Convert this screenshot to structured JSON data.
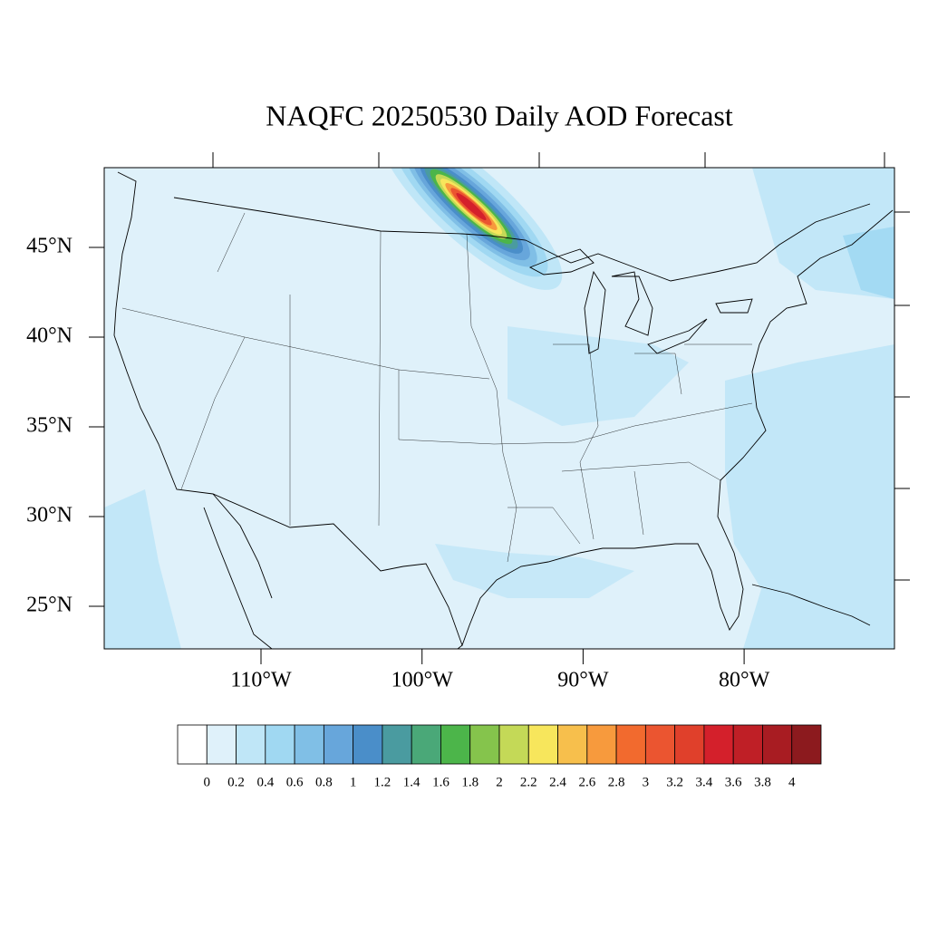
{
  "title": "NAQFC 20250530 Daily AOD Forecast",
  "lat_labels": [
    {
      "value": 45,
      "label": "45°N"
    },
    {
      "value": 40,
      "label": "40°N"
    },
    {
      "value": 35,
      "label": "35°N"
    },
    {
      "value": 30,
      "label": "30°N"
    },
    {
      "value": 25,
      "label": "25°N"
    }
  ],
  "lon_labels": [
    {
      "value": -110,
      "label": "110°W"
    },
    {
      "value": -100,
      "label": "100°W"
    },
    {
      "value": -90,
      "label": "90°W"
    },
    {
      "value": -80,
      "label": "80°W"
    }
  ],
  "colorbar": {
    "levels": [
      0,
      0.2,
      0.4,
      0.6,
      0.8,
      1,
      1.2,
      1.4,
      1.6,
      1.8,
      2,
      2.2,
      2.4,
      2.6,
      2.8,
      3,
      3.2,
      3.4,
      3.6,
      3.8,
      4
    ],
    "colors": [
      "#ffffff",
      "#dff1fa",
      "#bfe6f7",
      "#a0d8f2",
      "#80bfe6",
      "#67a6db",
      "#4a8ec9",
      "#4a9ba0",
      "#4aa878",
      "#4cb54a",
      "#85c44c",
      "#c4d957",
      "#f7e65c",
      "#f7bf4c",
      "#f79a3d",
      "#f26a2e",
      "#eb5530",
      "#e0402b",
      "#d4202b",
      "#bf1f26",
      "#a81c22",
      "#8c1a1e"
    ]
  }
}
